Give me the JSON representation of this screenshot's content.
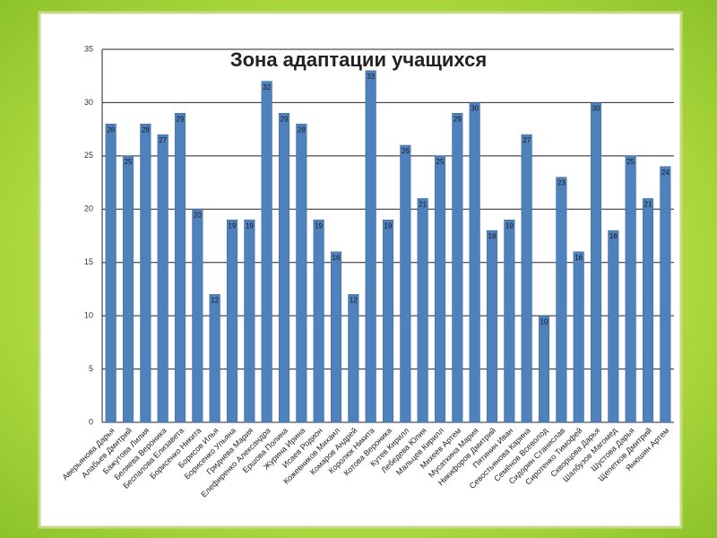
{
  "chart_data": {
    "type": "bar",
    "title": "Зона адаптации учащихся",
    "categories": [
      "Аверьянова Дарья",
      "Алабьев Дмитрий",
      "Бажутова Лилия",
      "Беляева Вероника",
      "Беспалова Елизавета",
      "Борисенко Никита",
      "Борисов Илья",
      "Борисенко Ульяна",
      "Гриднева Мария",
      "Елефиренко Александра",
      "Ершова Полина",
      "Журина Ирина",
      "Исаев Родион",
      "Кожевников Михаил",
      "Комаров Андрей",
      "Королюк Никита",
      "Котова Вероника",
      "Кутев Кирилл",
      "Лебедева Юлия",
      "Мальцев Кирилл",
      "Михеев Артем",
      "Мусаткина Мария",
      "Никифоров Дмитрий",
      "Пятинин Иван",
      "Севостьянова Карина",
      "Семёнов Всеволод",
      "Сидорин Станислав",
      "Сиротенко Тимофей",
      "Скворцова Дарья",
      "Шалбузов Магомед",
      "Шустова Дарья",
      "Щепетков Дмитрий",
      "Янюшин Артем"
    ],
    "values": [
      28,
      25,
      28,
      27,
      29,
      20,
      12,
      19,
      19,
      32,
      29,
      28,
      19,
      16,
      12,
      33,
      19,
      26,
      21,
      25,
      29,
      30,
      18,
      19,
      27,
      10,
      23,
      16,
      30,
      18,
      25,
      21,
      24
    ],
    "color": "#4f81bd",
    "ylim": [
      0,
      35
    ],
    "yticks": [
      0,
      5,
      10,
      15,
      20,
      25,
      30,
      35
    ],
    "grid": true
  }
}
